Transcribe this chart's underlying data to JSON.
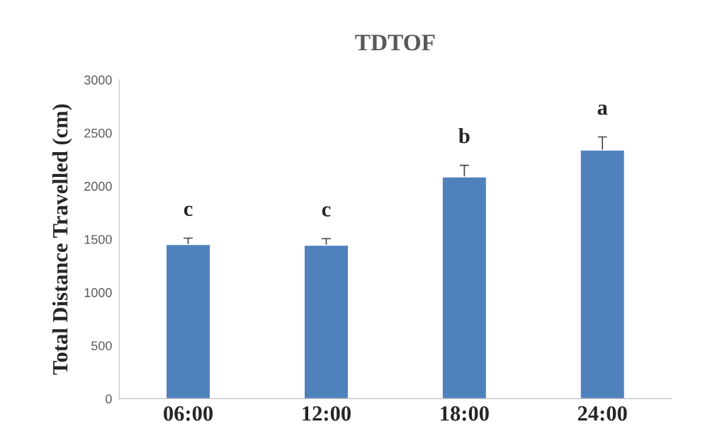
{
  "chart_data": {
    "type": "bar",
    "title": "TDTOF",
    "ylabel": "Total Distance Travelled (cm)",
    "categories": [
      "06:00",
      "12:00",
      "18:00",
      "24:00"
    ],
    "series": [
      {
        "color": "#4f81bd",
        "values": [
          1450,
          1444,
          2086,
          2338
        ],
        "errors": [
          [
            1450,
            1510
          ],
          [
            1444,
            1505
          ],
          [
            2086,
            2195
          ],
          [
            2338,
            2462
          ]
        ]
      }
    ],
    "annotations": [
      "c",
      "c",
      "b",
      "a"
    ],
    "ylim": [
      0,
      3000
    ],
    "yticks": [
      0,
      500,
      1000,
      1500,
      2000,
      2500,
      3000
    ],
    "grid": false,
    "legend": false
  }
}
